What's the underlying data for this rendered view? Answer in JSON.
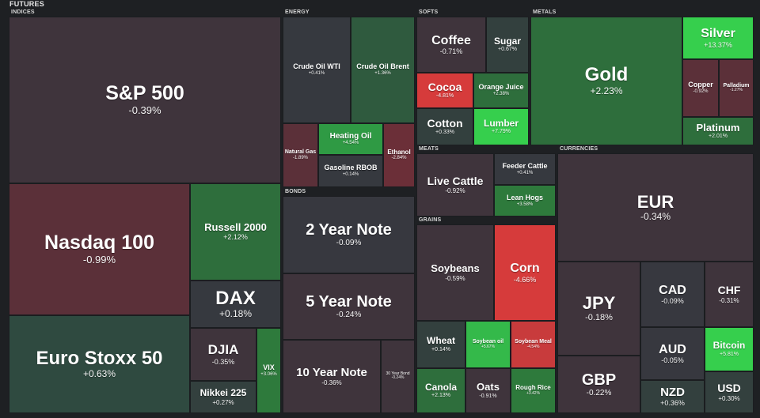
{
  "title": "FUTURES",
  "colors": {
    "neutral_neg": "#3f343c",
    "neutral_pos": "#33403e",
    "neutral_grey": "#37383f",
    "red_weak": "#5b3039",
    "red_mid": "#6b2f38",
    "red_strong": "#d63b3b",
    "green_weak": "#2f4a40",
    "green_mid": "#2e6e3c",
    "green_strong": "#34b94a",
    "green_bright": "#36cf4d"
  },
  "sections": {
    "indices": "INDICES",
    "energy": "ENERGY",
    "softs": "SOFTS",
    "metals": "METALS",
    "meats": "MEATS",
    "bonds": "BONDS",
    "grains": "GRAINS",
    "currencies": "CURRENCIES"
  },
  "tiles": {
    "sp500": {
      "name": "S&P 500",
      "change": "-0.39%"
    },
    "nasdaq100": {
      "name": "Nasdaq 100",
      "change": "-0.99%"
    },
    "russell2000": {
      "name": "Russell 2000",
      "change": "+2.12%"
    },
    "dax": {
      "name": "DAX",
      "change": "+0.18%"
    },
    "eurostoxx50": {
      "name": "Euro Stoxx 50",
      "change": "+0.63%"
    },
    "djia": {
      "name": "DJIA",
      "change": "-0.35%"
    },
    "nikkei225": {
      "name": "Nikkei 225",
      "change": "+0.27%"
    },
    "vix": {
      "name": "VIX",
      "change": "+3.06%"
    },
    "crudewti": {
      "name": "Crude Oil WTI",
      "change": "+0.41%"
    },
    "crudebrent": {
      "name": "Crude Oil Brent",
      "change": "+1.36%"
    },
    "natgas": {
      "name": "Natural Gas",
      "change": "-1.89%"
    },
    "heatingoil": {
      "name": "Heating Oil",
      "change": "+4.54%"
    },
    "gasoline": {
      "name": "Gasoline RBOB",
      "change": "+0.14%"
    },
    "ethanol": {
      "name": "Ethanol",
      "change": "-2.84%"
    },
    "coffee": {
      "name": "Coffee",
      "change": "-0.71%"
    },
    "sugar": {
      "name": "Sugar",
      "change": "+0.67%"
    },
    "cocoa": {
      "name": "Cocoa",
      "change": "-4.81%"
    },
    "orangejuice": {
      "name": "Orange Juice",
      "change": "+2.38%"
    },
    "cotton": {
      "name": "Cotton",
      "change": "+0.33%"
    },
    "lumber": {
      "name": "Lumber",
      "change": "+7.79%"
    },
    "gold": {
      "name": "Gold",
      "change": "+2.23%"
    },
    "silver": {
      "name": "Silver",
      "change": "+13.37%"
    },
    "copper": {
      "name": "Copper",
      "change": "-0.92%"
    },
    "palladium": {
      "name": "Palladium",
      "change": "-1.27%"
    },
    "platinum": {
      "name": "Platinum",
      "change": "+2.01%"
    },
    "livecattle": {
      "name": "Live Cattle",
      "change": "-0.92%"
    },
    "feedercattle": {
      "name": "Feeder Cattle",
      "change": "+0.41%"
    },
    "leanhogs": {
      "name": "Lean Hogs",
      "change": "+3.58%"
    },
    "note2": {
      "name": "2 Year Note",
      "change": "-0.09%"
    },
    "note5": {
      "name": "5 Year Note",
      "change": "-0.24%"
    },
    "note10": {
      "name": "10 Year Note",
      "change": "-0.36%"
    },
    "bond30": {
      "name": "30 Year Bond",
      "change": "-0.24%"
    },
    "soybeans": {
      "name": "Soybeans",
      "change": "-0.59%"
    },
    "corn": {
      "name": "Corn",
      "change": "-4.66%"
    },
    "wheat": {
      "name": "Wheat",
      "change": "+0.14%"
    },
    "soybeanoil": {
      "name": "Soybean oil",
      "change": "+5.67%"
    },
    "soybeanmeal": {
      "name": "Soybean Meal",
      "change": "-4.54%"
    },
    "canola": {
      "name": "Canola",
      "change": "+2.13%"
    },
    "oats": {
      "name": "Oats",
      "change": "-0.91%"
    },
    "roughrice": {
      "name": "Rough Rice",
      "change": "+3.42%"
    },
    "eur": {
      "name": "EUR",
      "change": "-0.34%"
    },
    "jpy": {
      "name": "JPY",
      "change": "-0.18%"
    },
    "cad": {
      "name": "CAD",
      "change": "-0.09%"
    },
    "chf": {
      "name": "CHF",
      "change": "-0.31%"
    },
    "aud": {
      "name": "AUD",
      "change": "-0.05%"
    },
    "bitcoin": {
      "name": "Bitcoin",
      "change": "+5.81%"
    },
    "gbp": {
      "name": "GBP",
      "change": "-0.22%"
    },
    "nzd": {
      "name": "NZD",
      "change": "+0.36%"
    },
    "usd": {
      "name": "USD",
      "change": "+0.30%"
    }
  }
}
